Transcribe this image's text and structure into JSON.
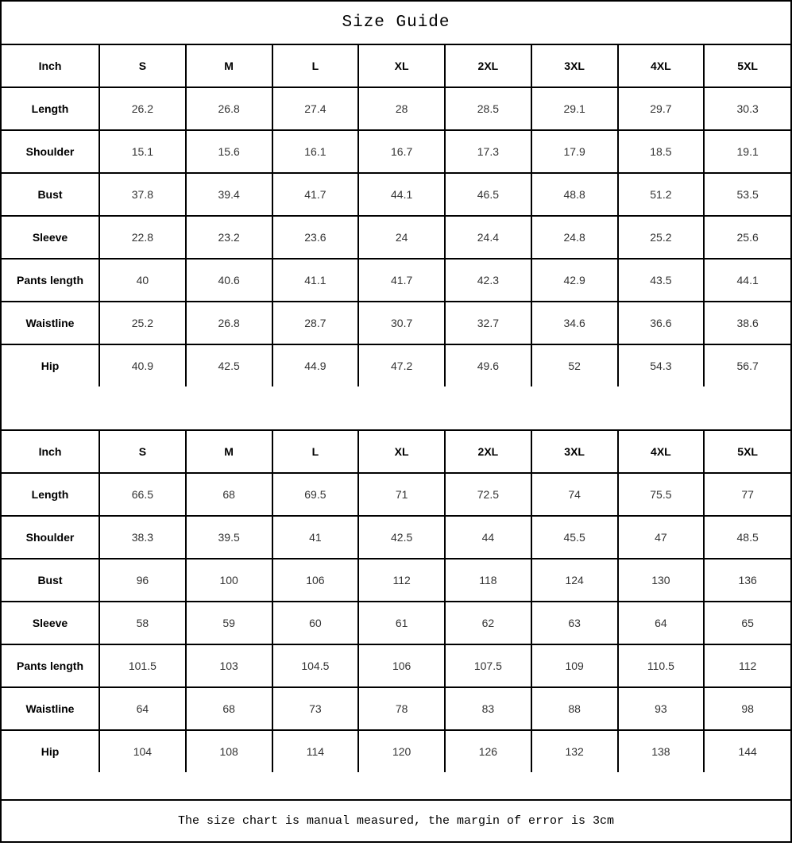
{
  "page": {
    "title": "Size Guide",
    "footer_note": "The size chart is manual measured, the margin of error is 3cm",
    "border_color": "#000000",
    "background_color": "#ffffff",
    "label_text_color": "#000000",
    "value_text_color": "#333333"
  },
  "tables": [
    {
      "unit_label": "Inch",
      "columns": [
        "S",
        "M",
        "L",
        "XL",
        "2XL",
        "3XL",
        "4XL",
        "5XL"
      ],
      "rows": [
        {
          "label": "Length",
          "values": [
            "26.2",
            "26.8",
            "27.4",
            "28",
            "28.5",
            "29.1",
            "29.7",
            "30.3"
          ]
        },
        {
          "label": "Shoulder",
          "values": [
            "15.1",
            "15.6",
            "16.1",
            "16.7",
            "17.3",
            "17.9",
            "18.5",
            "19.1"
          ]
        },
        {
          "label": "Bust",
          "values": [
            "37.8",
            "39.4",
            "41.7",
            "44.1",
            "46.5",
            "48.8",
            "51.2",
            "53.5"
          ]
        },
        {
          "label": "Sleeve",
          "values": [
            "22.8",
            "23.2",
            "23.6",
            "24",
            "24.4",
            "24.8",
            "25.2",
            "25.6"
          ]
        },
        {
          "label": "Pants length",
          "values": [
            "40",
            "40.6",
            "41.1",
            "41.7",
            "42.3",
            "42.9",
            "43.5",
            "44.1"
          ]
        },
        {
          "label": "Waistline",
          "values": [
            "25.2",
            "26.8",
            "28.7",
            "30.7",
            "32.7",
            "34.6",
            "36.6",
            "38.6"
          ]
        },
        {
          "label": "Hip",
          "values": [
            "40.9",
            "42.5",
            "44.9",
            "47.2",
            "49.6",
            "52",
            "54.3",
            "56.7"
          ]
        }
      ]
    },
    {
      "unit_label": "Inch",
      "columns": [
        "S",
        "M",
        "L",
        "XL",
        "2XL",
        "3XL",
        "4XL",
        "5XL"
      ],
      "rows": [
        {
          "label": "Length",
          "values": [
            "66.5",
            "68",
            "69.5",
            "71",
            "72.5",
            "74",
            "75.5",
            "77"
          ]
        },
        {
          "label": "Shoulder",
          "values": [
            "38.3",
            "39.5",
            "41",
            "42.5",
            "44",
            "45.5",
            "47",
            "48.5"
          ]
        },
        {
          "label": "Bust",
          "values": [
            "96",
            "100",
            "106",
            "112",
            "118",
            "124",
            "130",
            "136"
          ]
        },
        {
          "label": "Sleeve",
          "values": [
            "58",
            "59",
            "60",
            "61",
            "62",
            "63",
            "64",
            "65"
          ]
        },
        {
          "label": "Pants length",
          "values": [
            "101.5",
            "103",
            "104.5",
            "106",
            "107.5",
            "109",
            "110.5",
            "112"
          ]
        },
        {
          "label": "Waistline",
          "values": [
            "64",
            "68",
            "73",
            "78",
            "83",
            "88",
            "93",
            "98"
          ]
        },
        {
          "label": "Hip",
          "values": [
            "104",
            "108",
            "114",
            "120",
            "126",
            "132",
            "138",
            "144"
          ]
        }
      ]
    }
  ]
}
